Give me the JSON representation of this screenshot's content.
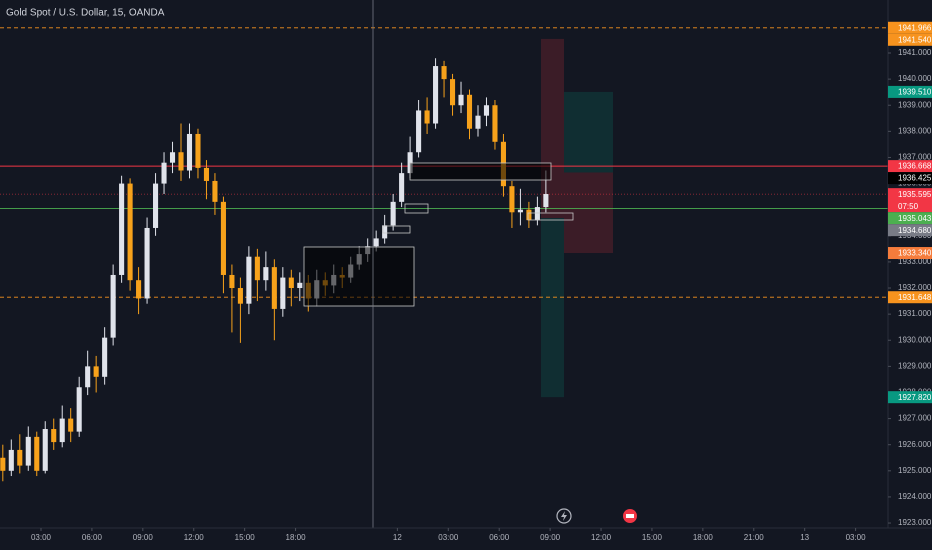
{
  "chart_data": {
    "type": "candlestick",
    "title": "Gold Spot / U.S. Dollar, 15, OANDA",
    "up_color": "#e0e3eb",
    "down_color": "#f7a21b",
    "grid": false,
    "xlim": [
      0.584,
      52.91
    ],
    "ylim": [
      1922.81,
      1943.03
    ],
    "xticks": [
      {
        "value": 3,
        "label": "03:00"
      },
      {
        "value": 6,
        "label": "06:00"
      },
      {
        "value": 9,
        "label": "09:00"
      },
      {
        "value": 12,
        "label": "12:00"
      },
      {
        "value": 15,
        "label": "15:00"
      },
      {
        "value": 18,
        "label": "18:00"
      },
      {
        "value": 24,
        "label": "12"
      },
      {
        "value": 27,
        "label": "03:00"
      },
      {
        "value": 30,
        "label": "06:00"
      },
      {
        "value": 33,
        "label": "09:00"
      },
      {
        "value": 36,
        "label": "12:00"
      },
      {
        "value": 39,
        "label": "15:00"
      },
      {
        "value": 42,
        "label": "18:00"
      },
      {
        "value": 45,
        "label": "21:00"
      },
      {
        "value": 48,
        "label": "13"
      },
      {
        "value": 51,
        "label": "03:00"
      }
    ],
    "yticks": [
      {
        "value": 1923,
        "label": "1923.000"
      },
      {
        "value": 1924,
        "label": "1924.000"
      },
      {
        "value": 1925,
        "label": "1925.000"
      },
      {
        "value": 1926,
        "label": "1926.000"
      },
      {
        "value": 1927,
        "label": "1927.000"
      },
      {
        "value": 1928,
        "label": "1928.000"
      },
      {
        "value": 1929,
        "label": "1929.000"
      },
      {
        "value": 1930,
        "label": "1930.000"
      },
      {
        "value": 1931,
        "label": "1931.000"
      },
      {
        "value": 1932,
        "label": "1932.000"
      },
      {
        "value": 1933,
        "label": "1933.000"
      },
      {
        "value": 1934,
        "label": "1934.000"
      },
      {
        "value": 1935,
        "label": "1935.000"
      },
      {
        "value": 1936,
        "label": "1936.000"
      },
      {
        "value": 1937,
        "label": "1937.000"
      },
      {
        "value": 1938,
        "label": "1938.000"
      },
      {
        "value": 1939,
        "label": "1939.000"
      },
      {
        "value": 1940,
        "label": "1940.000"
      },
      {
        "value": 1941,
        "label": "1941.000"
      }
    ],
    "x": [
      0.75,
      1.25,
      1.75,
      2.25,
      2.75,
      3.25,
      3.75,
      4.25,
      4.75,
      5.25,
      5.75,
      6.25,
      6.75,
      7.25,
      7.75,
      8.25,
      8.75,
      9.25,
      9.75,
      10.25,
      10.75,
      11.25,
      11.75,
      12.25,
      12.75,
      13.25,
      13.75,
      14.25,
      14.75,
      15.25,
      15.75,
      16.25,
      16.75,
      17.25,
      17.75,
      18.25,
      18.75,
      19.25,
      19.75,
      20.25,
      20.75,
      21.25,
      21.75,
      22.25,
      22.75,
      23.25,
      23.75,
      24.25,
      24.75,
      25.25,
      25.75,
      26.25,
      26.75,
      27.25,
      27.75,
      28.25,
      28.75,
      29.25,
      29.75,
      30.25,
      30.75,
      31.25,
      31.75,
      32.25,
      32.75
    ],
    "open": [
      1925.5,
      1925.0,
      1925.8,
      1925.2,
      1926.3,
      1925.0,
      1926.6,
      1926.1,
      1927.0,
      1926.5,
      1928.2,
      1929.0,
      1928.6,
      1930.1,
      1932.5,
      1936.0,
      1932.3,
      1931.6,
      1934.3,
      1936.0,
      1936.8,
      1937.2,
      1936.5,
      1937.9,
      1936.6,
      1936.1,
      1935.3,
      1932.5,
      1932.0,
      1931.4,
      1933.2,
      1932.3,
      1932.8,
      1931.2,
      1932.4,
      1932.0,
      1932.2,
      1931.6,
      1932.3,
      1932.1,
      1932.5,
      1932.4,
      1932.9,
      1933.3,
      1933.6,
      1933.9,
      1934.4,
      1935.3,
      1936.4,
      1937.2,
      1938.8,
      1938.3,
      1940.5,
      1940.0,
      1939.0,
      1939.4,
      1938.1,
      1938.6,
      1939.0,
      1937.6,
      1935.9,
      1934.9,
      1935.0,
      1934.6,
      1935.1
    ],
    "high": [
      1926.0,
      1926.2,
      1926.4,
      1926.7,
      1926.5,
      1926.9,
      1927.0,
      1927.5,
      1927.4,
      1928.6,
      1929.6,
      1929.4,
      1930.5,
      1932.9,
      1936.3,
      1936.2,
      1932.8,
      1934.7,
      1936.4,
      1937.2,
      1937.6,
      1938.3,
      1938.3,
      1938.1,
      1936.9,
      1936.4,
      1935.5,
      1932.9,
      1932.4,
      1933.6,
      1933.5,
      1933.4,
      1933.1,
      1932.8,
      1932.7,
      1932.6,
      1932.5,
      1932.7,
      1932.6,
      1932.9,
      1932.8,
      1933.2,
      1933.6,
      1933.9,
      1934.2,
      1934.8,
      1935.6,
      1936.8,
      1937.8,
      1939.2,
      1939.3,
      1940.8,
      1940.7,
      1940.2,
      1939.9,
      1939.6,
      1939.0,
      1939.3,
      1939.2,
      1937.9,
      1936.1,
      1935.8,
      1935.3,
      1935.5,
      1936.5
    ],
    "low": [
      1924.6,
      1924.8,
      1924.9,
      1925.0,
      1924.8,
      1924.9,
      1925.8,
      1925.9,
      1926.1,
      1926.3,
      1927.9,
      1928.0,
      1928.3,
      1929.8,
      1932.2,
      1931.9,
      1931.0,
      1931.4,
      1934.0,
      1935.6,
      1936.4,
      1936.1,
      1936.2,
      1936.2,
      1935.4,
      1934.8,
      1931.8,
      1930.3,
      1929.9,
      1931.0,
      1931.5,
      1931.9,
      1930.0,
      1930.9,
      1931.3,
      1931.5,
      1931.1,
      1931.3,
      1931.7,
      1931.8,
      1932.0,
      1932.2,
      1932.7,
      1933.0,
      1933.4,
      1933.7,
      1934.2,
      1935.1,
      1936.2,
      1937.0,
      1937.9,
      1938.1,
      1939.3,
      1938.6,
      1938.7,
      1937.7,
      1937.8,
      1938.2,
      1937.3,
      1935.5,
      1934.3,
      1934.4,
      1934.3,
      1934.4,
      1934.9
    ],
    "close": [
      1925.0,
      1925.8,
      1925.2,
      1926.3,
      1925.0,
      1926.6,
      1926.1,
      1927.0,
      1926.5,
      1928.2,
      1929.0,
      1928.6,
      1930.1,
      1932.5,
      1936.0,
      1932.3,
      1931.6,
      1934.3,
      1936.0,
      1936.8,
      1937.2,
      1936.5,
      1937.9,
      1936.6,
      1936.1,
      1935.3,
      1932.5,
      1932.0,
      1931.4,
      1933.2,
      1932.3,
      1932.8,
      1931.2,
      1932.4,
      1932.0,
      1932.2,
      1931.6,
      1932.3,
      1932.1,
      1932.5,
      1932.4,
      1932.9,
      1933.3,
      1933.6,
      1933.9,
      1934.4,
      1935.3,
      1936.4,
      1937.2,
      1938.8,
      1938.3,
      1940.5,
      1940.0,
      1939.0,
      1939.4,
      1938.1,
      1938.6,
      1939.0,
      1937.6,
      1935.9,
      1934.9,
      1935.0,
      1934.6,
      1935.1,
      1935.6
    ],
    "price_tags": [
      {
        "value": 1941.966,
        "label": "1941.966",
        "color": "#f7931e",
        "line": "dashed"
      },
      {
        "value": 1941.54,
        "label": "1941.540",
        "color": "#f7931e"
      },
      {
        "value": 1939.51,
        "label": "1939.510",
        "color": "#089981"
      },
      {
        "value": 1936.668,
        "label": "1936.668",
        "color": "#f23645",
        "line": "solid"
      },
      {
        "value": 1936.425,
        "label": "1936.425",
        "color": "#000000"
      },
      {
        "value": 1935.595,
        "label": "1935.595",
        "color": "#f23645",
        "line": "dotted",
        "countdown": "07:50"
      },
      {
        "value": 1935.043,
        "label": "1935.043",
        "color": "#4caf50",
        "line": "solid"
      },
      {
        "value": 1934.68,
        "label": "1934.680",
        "color": "#787b86"
      },
      {
        "value": 1933.34,
        "label": "1933.340",
        "color": "#f57c3c"
      },
      {
        "value": 1931.648,
        "label": "1931.648",
        "color": "#f7931e",
        "line": "dashed"
      },
      {
        "value": 1927.82,
        "label": "1927.820",
        "color": "#089981"
      }
    ]
  }
}
